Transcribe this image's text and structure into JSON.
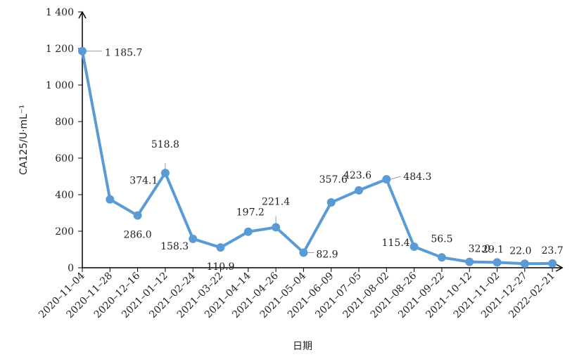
{
  "chart_data": {
    "type": "line",
    "categories": [
      "2020–11–04",
      "2020–11–28",
      "2020–12–16",
      "2021–01–12",
      "2021–02–24",
      "2021–03–22",
      "2021–04–14",
      "2021–04–26",
      "2021–05–04",
      "2021–06–09",
      "2021–07–05",
      "2021–08–02",
      "2021–08–26",
      "2021–09–22",
      "2021–10–12",
      "2021–11–02",
      "2021–12–27",
      "2022–02–21"
    ],
    "values": [
      1185.7,
      374.1,
      286.0,
      518.8,
      158.3,
      110.9,
      197.2,
      221.4,
      82.9,
      357.6,
      423.6,
      484.3,
      115.4,
      56.5,
      32.0,
      29.1,
      22.0,
      23.7
    ],
    "value_labels": [
      "1 185.7",
      "374.1",
      "286.0",
      "518.8",
      "158.3",
      "110.9",
      "197.2",
      "221.4",
      "82.9",
      "357.6",
      "423.6",
      "484.3",
      "115.4",
      "56.5",
      "32.0",
      "29.1",
      "22.0",
      "23.7"
    ],
    "ylabel": "CA125/U·mL⁻¹",
    "xlabel": "日期",
    "ylim": [
      0,
      1400
    ],
    "yticks": [
      0,
      200,
      400,
      600,
      800,
      1000,
      1200,
      1400
    ],
    "ytick_labels": [
      "0",
      "200",
      "400",
      "600",
      "800",
      "1 000",
      "1 200",
      "1 400"
    ],
    "grid": false,
    "line_color": "#5b9bd5"
  }
}
